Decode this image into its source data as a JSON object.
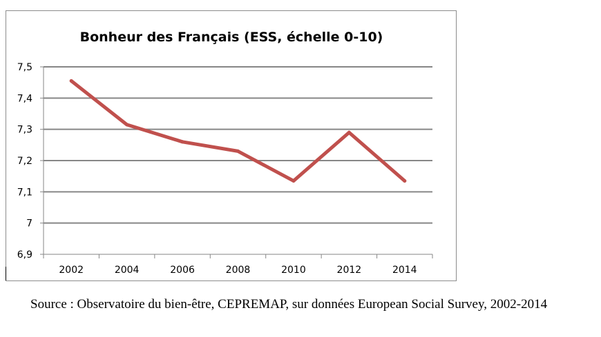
{
  "chart_data": {
    "type": "line",
    "title": "Bonheur des Français (ESS, échelle 0-10)",
    "xlabel": "",
    "ylabel": "",
    "categories": [
      "2002",
      "2004",
      "2006",
      "2008",
      "2010",
      "2012",
      "2014"
    ],
    "series": [
      {
        "values": [
          7.455,
          7.315,
          7.26,
          7.23,
          7.135,
          7.29,
          7.135
        ]
      }
    ],
    "ylim": [
      6.9,
      7.5
    ],
    "yticks": [
      6.9,
      7.0,
      7.1,
      7.2,
      7.3,
      7.4,
      7.5
    ],
    "ytick_labels": [
      "6,9",
      "7",
      "7,1",
      "7,2",
      "7,3",
      "7,4",
      "7,5"
    ],
    "grid": true,
    "legend": "none",
    "line_color": "#c0504d"
  },
  "source_note": "Source : Observatoire du bien-être, CEPREMAP, sur données European Social Survey, 2002-2014"
}
